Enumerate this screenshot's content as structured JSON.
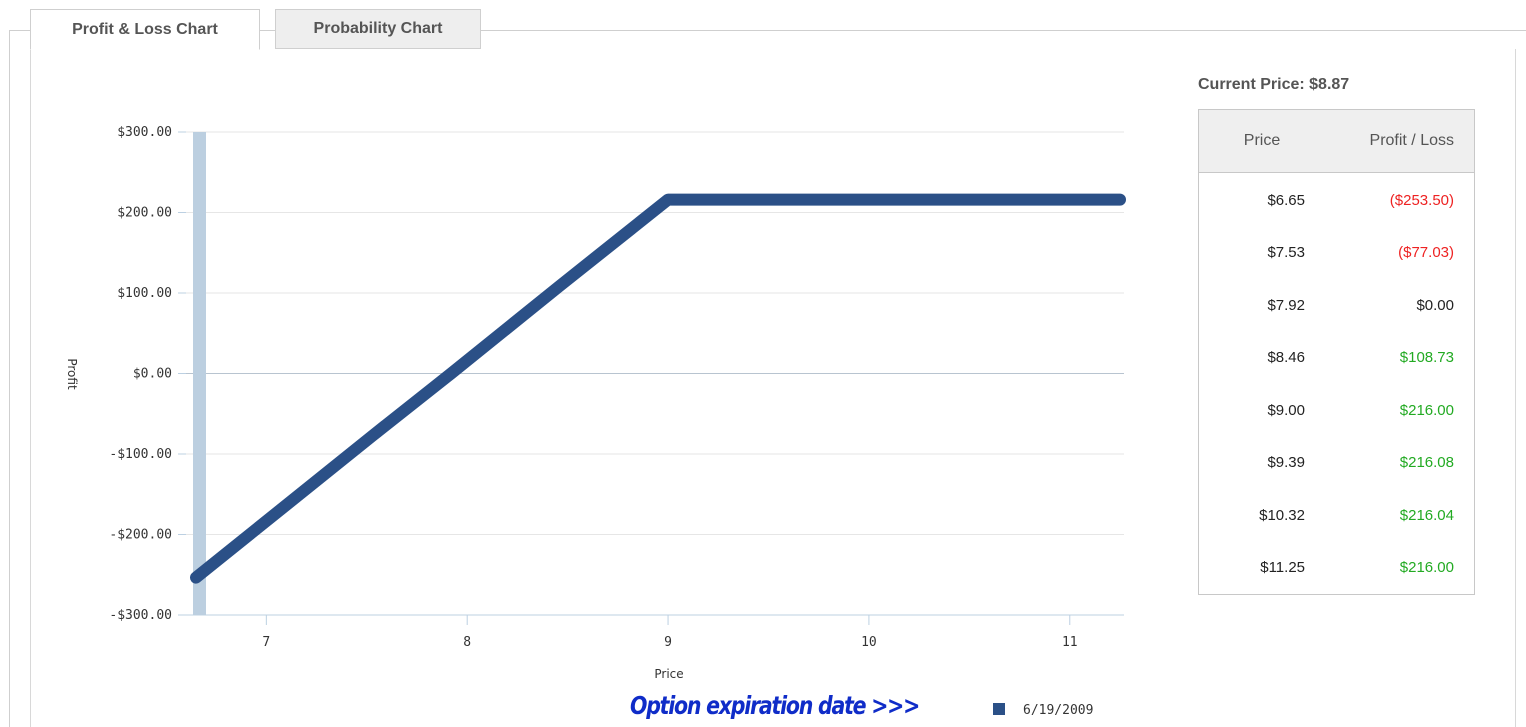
{
  "tabs": [
    {
      "label": "Profit & Loss Chart",
      "active": true
    },
    {
      "label": "Probability Chart",
      "active": false
    }
  ],
  "current_price_label": "Current Price: $8.87",
  "table": {
    "headers": [
      "Price",
      "Profit / Loss"
    ],
    "rows": [
      {
        "price": "$6.65",
        "pl": "($253.50)",
        "status": "loss"
      },
      {
        "price": "$7.53",
        "pl": "($77.03)",
        "status": "loss"
      },
      {
        "price": "$7.92",
        "pl": "$0.00",
        "status": "neutral"
      },
      {
        "price": "$8.46",
        "pl": "$108.73",
        "status": "gain"
      },
      {
        "price": "$9.00",
        "pl": "$216.00",
        "status": "gain"
      },
      {
        "price": "$9.39",
        "pl": "$216.08",
        "status": "gain"
      },
      {
        "price": "$10.32",
        "pl": "$216.04",
        "status": "gain"
      },
      {
        "price": "$11.25",
        "pl": "$216.00",
        "status": "gain"
      }
    ]
  },
  "colors": {
    "loss": "#ee2222",
    "gain": "#22aa22",
    "neutral": "#222222",
    "series": "#2b5087",
    "band": "#bccfe0",
    "annotation": "#0f2cc8"
  },
  "annotation": "Option expiration date  >>>",
  "chart_data": {
    "type": "line",
    "xlabel": "Price",
    "ylabel": "Profit",
    "xlim": [
      6.6,
      11.27
    ],
    "ylim": [
      -300,
      300
    ],
    "xticks": [
      7,
      8,
      9,
      10,
      11
    ],
    "yticks": [
      -300,
      -200,
      -100,
      0,
      100,
      200,
      300
    ],
    "ytick_labels": [
      "-$300.00",
      "-$200.00",
      "-$100.00",
      "$0.00",
      "$100.00",
      "$200.00",
      "$300.00"
    ],
    "grid": true,
    "legend": "bottom-right",
    "series": [
      {
        "name": "6/19/2009",
        "x": [
          6.65,
          7.53,
          7.92,
          8.46,
          9.0,
          9.39,
          10.32,
          11.25
        ],
        "y": [
          -253.5,
          -77.03,
          0.0,
          108.73,
          216.0,
          216.08,
          216.04,
          216.0
        ]
      }
    ]
  }
}
